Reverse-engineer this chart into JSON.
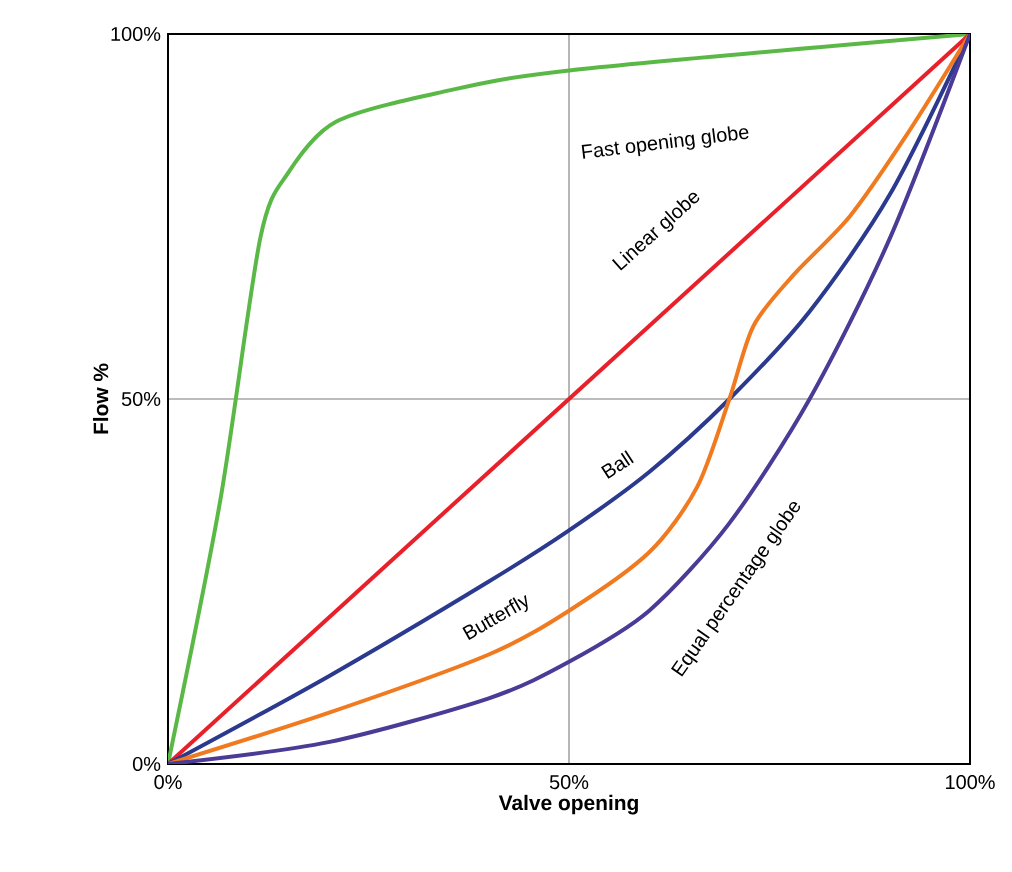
{
  "chart_data": {
    "type": "line",
    "xlabel": "Valve opening",
    "ylabel": "Flow %",
    "xlim": [
      0,
      100
    ],
    "ylim": [
      0,
      100
    ],
    "xticks": [
      {
        "value": 0,
        "label": "0%"
      },
      {
        "value": 50,
        "label": "50%"
      },
      {
        "value": 100,
        "label": "100%"
      }
    ],
    "yticks": [
      {
        "value": 0,
        "label": "0%"
      },
      {
        "value": 50,
        "label": "50%"
      },
      {
        "value": 100,
        "label": "100%"
      }
    ],
    "grid": true,
    "legend": false,
    "marker": "none",
    "line_style": "solid",
    "series": [
      {
        "name": "Fast opening globe",
        "color": "#5ab946",
        "x": [
          0,
          6.5,
          11.5,
          15,
          21,
          34,
          50,
          100
        ],
        "values": [
          0,
          36,
          72,
          81,
          88,
          92,
          95,
          100
        ]
      },
      {
        "name": "Linear globe",
        "color": "#e8202a",
        "x": [
          0,
          100
        ],
        "values": [
          0,
          100
        ]
      },
      {
        "name": "Ball",
        "color": "#2b3a8f",
        "x": [
          0,
          20,
          40,
          50,
          60,
          70,
          80,
          90,
          100
        ],
        "values": [
          0,
          12,
          25,
          32,
          40,
          50,
          62,
          78,
          100
        ]
      },
      {
        "name": "Butterfly",
        "color": "#f07a20",
        "x": [
          0,
          20,
          40,
          50,
          60,
          66,
          70,
          73,
          78,
          85,
          92,
          100
        ],
        "values": [
          0,
          7,
          15,
          21,
          29,
          38,
          50,
          60,
          67,
          75,
          86,
          100
        ]
      },
      {
        "name": "Equal percentage globe",
        "color": "#4b3a96",
        "x": [
          0,
          20,
          40,
          50,
          60,
          70,
          80,
          90,
          100
        ],
        "values": [
          0,
          3,
          9,
          14,
          21,
          33,
          50,
          72,
          100
        ]
      }
    ]
  }
}
